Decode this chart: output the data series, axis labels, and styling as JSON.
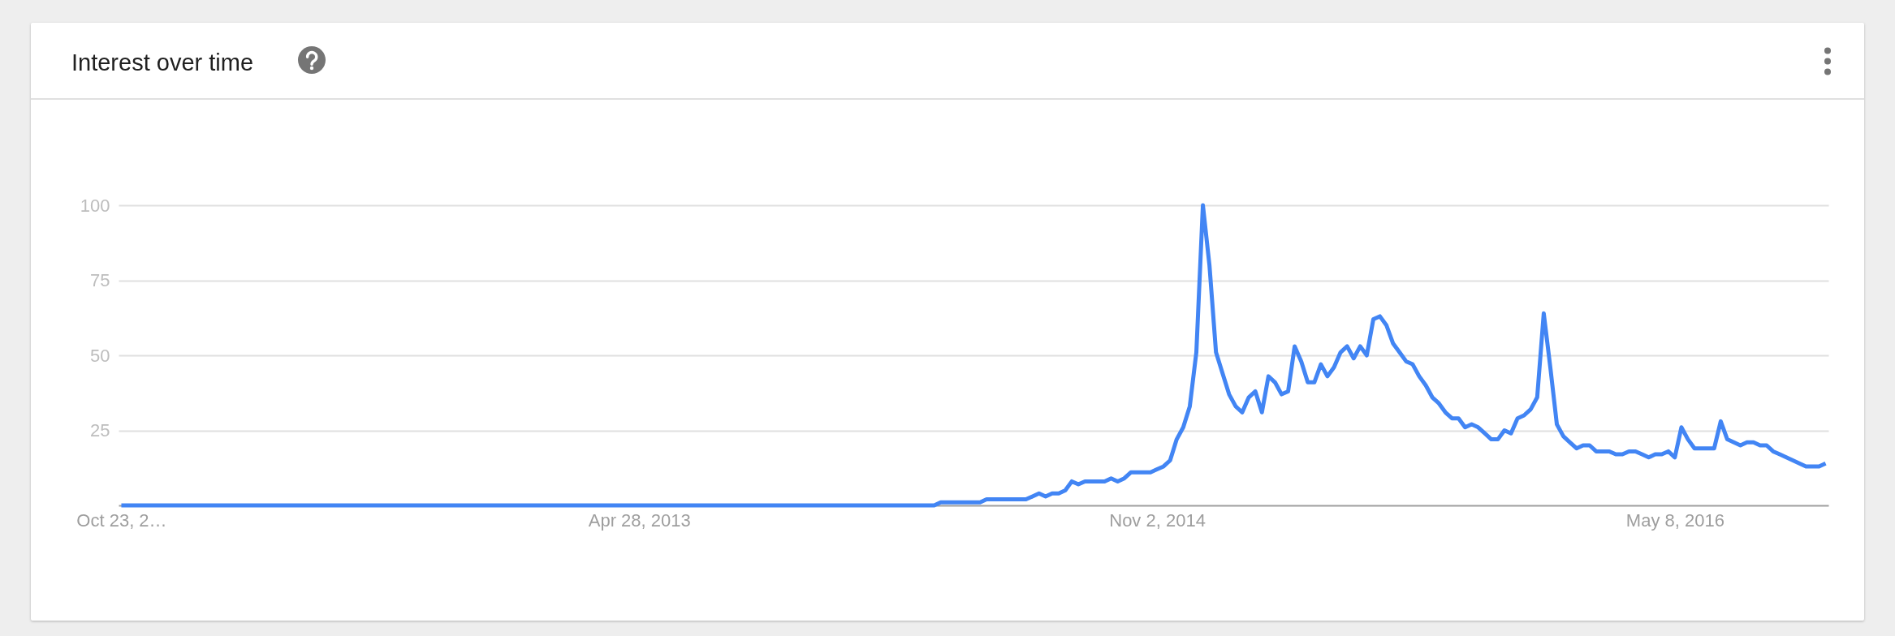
{
  "chart_data": {
    "type": "line",
    "title": "Interest over time",
    "x": [
      "2011-10-23",
      "2014-03-09",
      "2014-03-16",
      "2014-04-27",
      "2014-05-04",
      "2014-06-15",
      "2014-06-22",
      "2014-06-29",
      "2014-07-06",
      "2014-07-13",
      "2014-07-20",
      "2014-07-27",
      "2014-08-03",
      "2014-08-10",
      "2014-08-17",
      "2014-09-07",
      "2014-09-14",
      "2014-09-21",
      "2014-09-28",
      "2014-10-05",
      "2014-10-26",
      "2014-11-02",
      "2014-11-09",
      "2014-11-16",
      "2014-11-23",
      "2014-11-30",
      "2014-12-07",
      "2014-12-14",
      "2014-12-21",
      "2014-12-28",
      "2015-01-04",
      "2015-01-11",
      "2015-01-18",
      "2015-01-25",
      "2015-02-01",
      "2015-02-08",
      "2015-02-15",
      "2015-02-22",
      "2015-03-01",
      "2015-03-08",
      "2015-03-15",
      "2015-03-22",
      "2015-03-29",
      "2015-04-05",
      "2015-04-12",
      "2015-04-19",
      "2015-04-26",
      "2015-05-03",
      "2015-05-10",
      "2015-05-17",
      "2015-05-24",
      "2015-05-31",
      "2015-06-07",
      "2015-06-14",
      "2015-06-21",
      "2015-06-28",
      "2015-07-05",
      "2015-07-12",
      "2015-07-19",
      "2015-07-26",
      "2015-08-02",
      "2015-08-09",
      "2015-08-16",
      "2015-08-23",
      "2015-08-30",
      "2015-09-06",
      "2015-09-13",
      "2015-09-20",
      "2015-09-27",
      "2015-10-04",
      "2015-10-11",
      "2015-10-18",
      "2015-10-25",
      "2015-11-01",
      "2015-11-08",
      "2015-11-15",
      "2015-11-22",
      "2015-11-29",
      "2015-12-06",
      "2015-12-13",
      "2015-12-20",
      "2015-12-27",
      "2016-01-03",
      "2016-01-10",
      "2016-01-17",
      "2016-01-24",
      "2016-01-31",
      "2016-02-07",
      "2016-02-14",
      "2016-02-28",
      "2016-03-06",
      "2016-03-13",
      "2016-03-20",
      "2016-03-27",
      "2016-04-03",
      "2016-04-10",
      "2016-04-17",
      "2016-04-24",
      "2016-05-01",
      "2016-05-08",
      "2016-05-15",
      "2016-05-22",
      "2016-05-29",
      "2016-06-19",
      "2016-06-26",
      "2016-07-03",
      "2016-07-10",
      "2016-07-17",
      "2016-07-24",
      "2016-07-31",
      "2016-08-07",
      "2016-08-14",
      "2016-08-21",
      "2016-08-28",
      "2016-09-04",
      "2016-09-11",
      "2016-09-18",
      "2016-09-25",
      "2016-10-09",
      "2016-10-16"
    ],
    "values": [
      0,
      0,
      1,
      1,
      2,
      2,
      3,
      4,
      3,
      4,
      4,
      5,
      8,
      7,
      8,
      8,
      9,
      8,
      9,
      11,
      11,
      12,
      13,
      15,
      22,
      26,
      33,
      51,
      100,
      80,
      51,
      44,
      37,
      33,
      31,
      36,
      38,
      31,
      43,
      41,
      37,
      38,
      53,
      48,
      41,
      41,
      47,
      43,
      46,
      51,
      53,
      49,
      53,
      50,
      62,
      63,
      60,
      54,
      51,
      48,
      47,
      43,
      40,
      36,
      34,
      31,
      29,
      29,
      26,
      27,
      26,
      24,
      22,
      22,
      25,
      24,
      29,
      30,
      32,
      36,
      64,
      46,
      27,
      23,
      21,
      19,
      20,
      20,
      18,
      18,
      17,
      17,
      18,
      18,
      17,
      16,
      17,
      17,
      18,
      16,
      26,
      22,
      19,
      19,
      28,
      22,
      21,
      20,
      21,
      21,
      20,
      20,
      18,
      17,
      16,
      15,
      14,
      13,
      13,
      14
    ],
    "color": "#4285f4",
    "xlim": [
      "2011-10-20",
      "2016-10-19"
    ],
    "xticks": [
      {
        "value": "2011-10-23",
        "label": "Oct 23, 2…"
      },
      {
        "value": "2013-04-28",
        "label": "Apr 28, 2013"
      },
      {
        "value": "2014-11-02",
        "label": "Nov 2, 2014"
      },
      {
        "value": "2016-05-08",
        "label": "May 8, 2016"
      }
    ],
    "ylim": [
      0,
      100
    ],
    "yticks": [
      25,
      50,
      75,
      100
    ],
    "grid": "y"
  }
}
